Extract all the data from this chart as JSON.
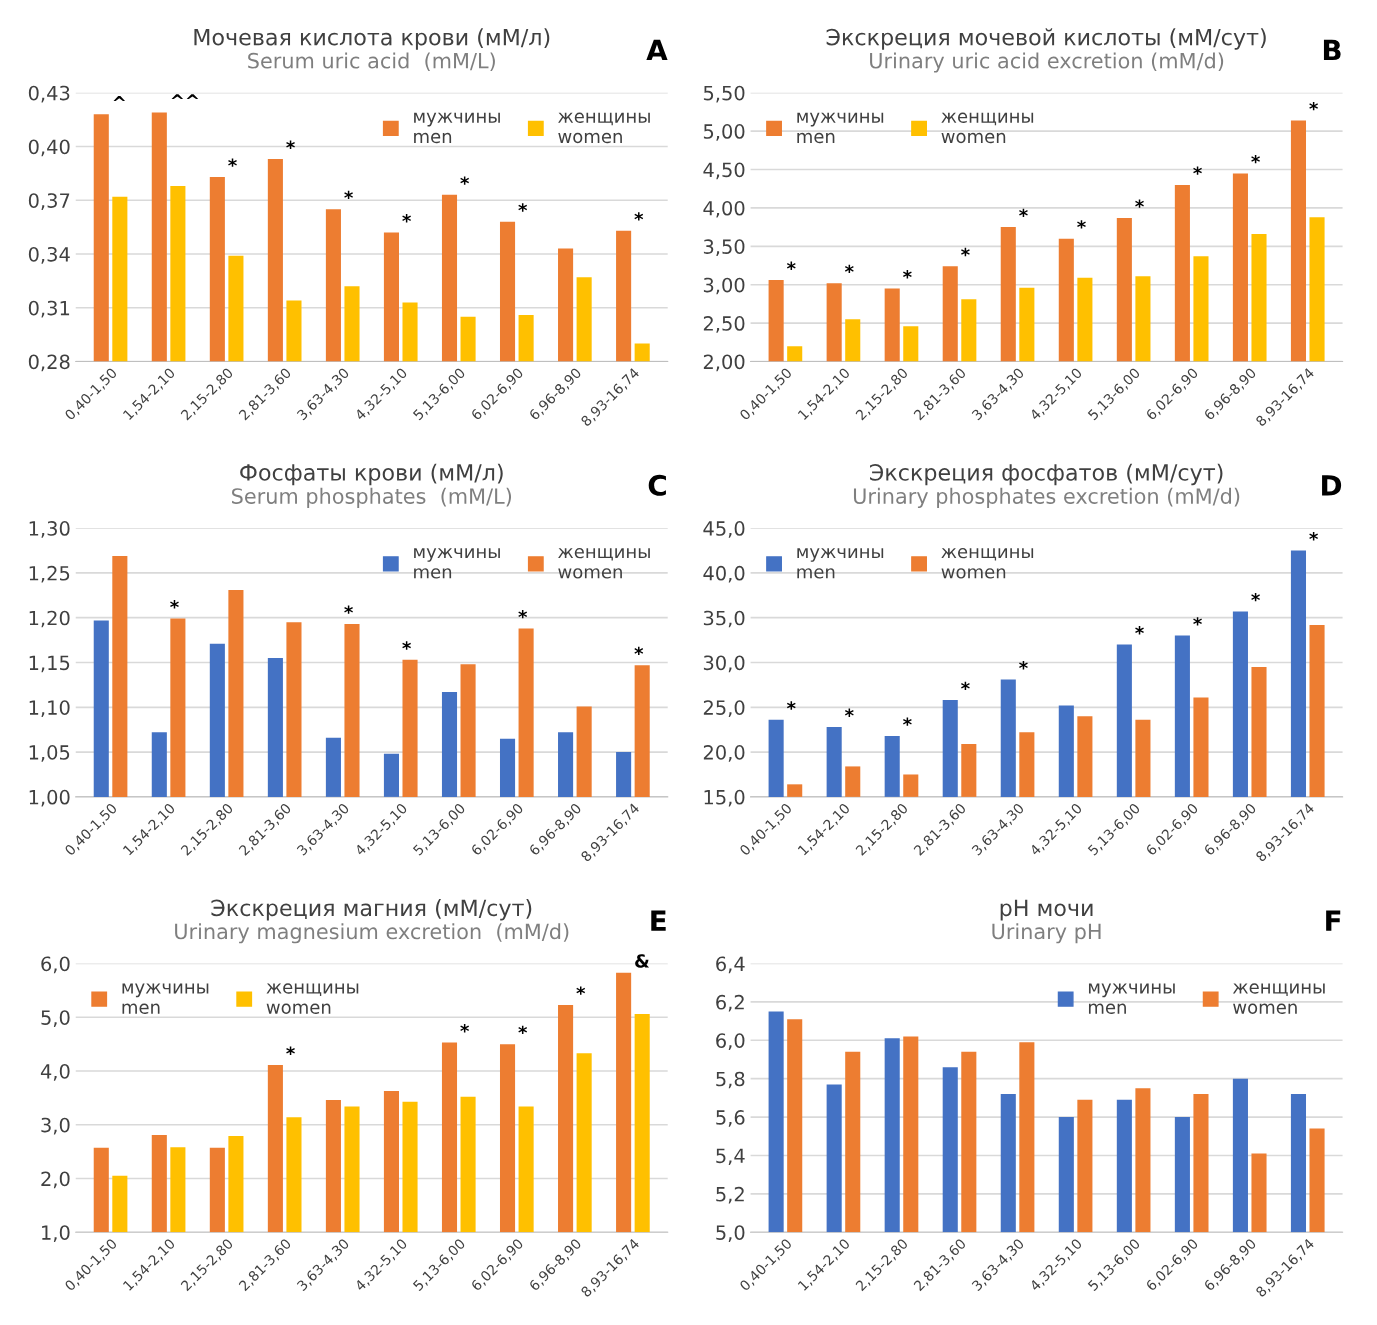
{
  "chart_data": [
    {
      "type": "bar",
      "title": "Мочевая кислота крови (мМ/л)",
      "subtitle": "Serum uric acid  (mM/L)",
      "categories": [
        "0,40-1,50",
        "1,54-2,10",
        "2,15-2,80",
        "2,81-3,60",
        "3,63-4,30",
        "4,32-5,10",
        "5,13-6,00",
        "6,02-6,90",
        "6,96-8,90",
        "8,93-16,74"
      ],
      "series": [
        {
          "name": "мужчины\nmen",
          "color": "#ed7d31",
          "values": [
            0.418,
            0.419,
            0.383,
            0.393,
            0.365,
            0.352,
            0.373,
            0.358,
            0.343,
            0.353
          ]
        },
        {
          "name": "женщины\nwomen",
          "color": "#ffc000",
          "values": [
            0.372,
            0.378,
            0.339,
            0.314,
            0.322,
            0.313,
            0.305,
            0.306,
            0.327,
            0.29
          ]
        }
      ],
      "ylim": [
        0.28,
        0.43
      ],
      "yticks": [
        {
          "value": 0.28,
          "label": "0,28"
        },
        {
          "value": 0.31,
          "label": "0,31"
        },
        {
          "value": 0.34,
          "label": "0,34"
        },
        {
          "value": 0.37,
          "label": "0,37"
        },
        {
          "value": 0.4,
          "label": "0,40"
        },
        {
          "value": 0.43,
          "label": "0,43"
        }
      ],
      "grid": "y",
      "legend": "top right",
      "annotations": [
        "A",
        {
          "text": "^",
          "x": "0,40-1,50",
          "y": 0.418
        },
        {
          "text": "^^",
          "x": "1,54-2,10",
          "y": 0.419
        },
        {
          "text": "*",
          "x": "2,15-2,80",
          "y": 0.383
        },
        {
          "text": "*",
          "x": "2,81-3,60",
          "y": 0.393
        },
        {
          "text": "*",
          "x": "3,63-4,30",
          "y": 0.365
        },
        {
          "text": "*",
          "x": "4,32-5,10",
          "y": 0.352
        },
        {
          "text": "*",
          "x": "5,13-6,00",
          "y": 0.373
        },
        {
          "text": "*",
          "x": "6,02-6,90",
          "y": 0.358
        },
        {
          "text": "*",
          "x": "8,93-16,74",
          "y": 0.353
        }
      ]
    },
    {
      "type": "bar",
      "title": "Экскреция мочевой кислоты (мМ/сут)",
      "subtitle": "Urinary uric acid excretion (mM/d)",
      "categories": [
        "0,40-1,50",
        "1,54-2,10",
        "2,15-2,80",
        "2,81-3,60",
        "3,63-4,30",
        "4,32-5,10",
        "5,13-6,00",
        "6,02-6,90",
        "6,96-8,90",
        "8,93-16,74"
      ],
      "series": [
        {
          "name": "мужчины\nmen",
          "color": "#ed7d31",
          "values": [
            3.06,
            3.02,
            2.95,
            3.24,
            3.75,
            3.6,
            3.87,
            4.3,
            4.45,
            5.14
          ]
        },
        {
          "name": "женщины\nwomen",
          "color": "#ffc000",
          "values": [
            2.2,
            2.55,
            2.46,
            2.81,
            2.96,
            3.09,
            3.11,
            3.37,
            3.66,
            3.88
          ]
        }
      ],
      "ylim": [
        2.0,
        5.5
      ],
      "yticks": [
        {
          "value": 2.0,
          "label": "2,00"
        },
        {
          "value": 2.5,
          "label": "2,50"
        },
        {
          "value": 3.0,
          "label": "3,00"
        },
        {
          "value": 3.5,
          "label": "3,50"
        },
        {
          "value": 4.0,
          "label": "4,00"
        },
        {
          "value": 4.5,
          "label": "4,50"
        },
        {
          "value": 5.0,
          "label": "5,00"
        },
        {
          "value": 5.5,
          "label": "5,50"
        }
      ],
      "grid": "y",
      "legend": "top left",
      "annotations": [
        "B",
        {
          "text": "*",
          "x": "0,40-1,50",
          "y": 3.06
        },
        {
          "text": "*",
          "x": "1,54-2,10",
          "y": 3.02
        },
        {
          "text": "*",
          "x": "2,15-2,80",
          "y": 2.95
        },
        {
          "text": "*",
          "x": "2,81-3,60",
          "y": 3.24
        },
        {
          "text": "*",
          "x": "3,63-4,30",
          "y": 3.75
        },
        {
          "text": "*",
          "x": "4,32-5,10",
          "y": 3.6
        },
        {
          "text": "*",
          "x": "5,13-6,00",
          "y": 3.87
        },
        {
          "text": "*",
          "x": "6,02-6,90",
          "y": 4.3
        },
        {
          "text": "*",
          "x": "6,96-8,90",
          "y": 4.45
        },
        {
          "text": "*",
          "x": "8,93-16,74",
          "y": 5.14
        }
      ]
    },
    {
      "type": "bar",
      "title": "Фосфаты крови (мМ/л)",
      "subtitle": "Serum phosphates  (mM/L)",
      "categories": [
        "0,40-1,50",
        "1,54-2,10",
        "2,15-2,80",
        "2,81-3,60",
        "3,63-4,30",
        "4,32-5,10",
        "5,13-6,00",
        "6,02-6,90",
        "6,96-8,90",
        "8,93-16,74"
      ],
      "series": [
        {
          "name": "мужчины\nmen",
          "color": "#4472c4",
          "values": [
            1.197,
            1.072,
            1.171,
            1.155,
            1.066,
            1.048,
            1.117,
            1.065,
            1.072,
            1.05
          ]
        },
        {
          "name": "женщины\nwomen",
          "color": "#ed7d31",
          "values": [
            1.269,
            1.199,
            1.231,
            1.195,
            1.193,
            1.153,
            1.148,
            1.188,
            1.101,
            1.147
          ]
        }
      ],
      "ylim": [
        1.0,
        1.3
      ],
      "yticks": [
        {
          "value": 1.0,
          "label": "1,00"
        },
        {
          "value": 1.05,
          "label": "1,05"
        },
        {
          "value": 1.1,
          "label": "1,10"
        },
        {
          "value": 1.15,
          "label": "1,15"
        },
        {
          "value": 1.2,
          "label": "1,20"
        },
        {
          "value": 1.25,
          "label": "1,25"
        },
        {
          "value": 1.3,
          "label": "1,30"
        }
      ],
      "grid": "y",
      "legend": "top right",
      "annotations": [
        "C",
        {
          "text": "*",
          "x": "1,54-2,10",
          "y": 1.199
        },
        {
          "text": "*",
          "x": "3,63-4,30",
          "y": 1.193
        },
        {
          "text": "*",
          "x": "4,32-5,10",
          "y": 1.153
        },
        {
          "text": "*",
          "x": "6,02-6,90",
          "y": 1.188
        },
        {
          "text": "*",
          "x": "8,93-16,74",
          "y": 1.147
        }
      ]
    },
    {
      "type": "bar",
      "title": "Экскреция фосфатов (мМ/сут)",
      "subtitle": "Urinary phosphates excretion (mM/d)",
      "categories": [
        "0,40-1,50",
        "1,54-2,10",
        "2,15-2,80",
        "2,81-3,60",
        "3,63-4,30",
        "4,32-5,10",
        "5,13-6,00",
        "6,02-6,90",
        "6,96-8,90",
        "8,93-16,74"
      ],
      "series": [
        {
          "name": "мужчины\nmen",
          "color": "#4472c4",
          "values": [
            23.6,
            22.8,
            21.8,
            25.8,
            28.1,
            25.2,
            32.0,
            33.0,
            35.7,
            42.5
          ]
        },
        {
          "name": "женщины\nwomen",
          "color": "#ed7d31",
          "values": [
            16.4,
            18.4,
            17.5,
            20.9,
            22.2,
            24.0,
            23.6,
            26.1,
            29.5,
            34.2
          ]
        }
      ],
      "ylim": [
        15,
        45
      ],
      "yticks": [
        {
          "value": 15,
          "label": "15,0"
        },
        {
          "value": 20,
          "label": "20,0"
        },
        {
          "value": 25,
          "label": "25,0"
        },
        {
          "value": 30,
          "label": "30,0"
        },
        {
          "value": 35,
          "label": "35,0"
        },
        {
          "value": 40,
          "label": "40,0"
        },
        {
          "value": 45,
          "label": "45,0"
        }
      ],
      "grid": "y",
      "legend": "top left",
      "annotations": [
        "D",
        {
          "text": "*",
          "x": "0,40-1,50",
          "y": 23.6
        },
        {
          "text": "*",
          "x": "1,54-2,10",
          "y": 22.8
        },
        {
          "text": "*",
          "x": "2,15-2,80",
          "y": 21.8
        },
        {
          "text": "*",
          "x": "2,81-3,60",
          "y": 25.8
        },
        {
          "text": "*",
          "x": "3,63-4,30",
          "y": 28.1
        },
        {
          "text": "*",
          "x": "5,13-6,00",
          "y": 32.0
        },
        {
          "text": "*",
          "x": "6,02-6,90",
          "y": 33.0
        },
        {
          "text": "*",
          "x": "6,96-8,90",
          "y": 35.7
        },
        {
          "text": "*",
          "x": "8,93-16,74",
          "y": 42.5
        }
      ]
    },
    {
      "type": "bar",
      "title": "Экскреция магния (мМ/сут)",
      "subtitle": "Urinary magnesium excretion  (mM/d)",
      "categories": [
        "0,40-1,50",
        "1,54-2,10",
        "2,15-2,80",
        "2,81-3,60",
        "3,63-4,30",
        "4,32-5,10",
        "5,13-6,00",
        "6,02-6,90",
        "6,96-8,90",
        "8,93-16,74"
      ],
      "series": [
        {
          "name": "мужчины\nmen",
          "color": "#ed7d31",
          "values": [
            2.57,
            2.81,
            2.57,
            4.11,
            3.46,
            3.63,
            4.53,
            4.5,
            5.23,
            5.83
          ]
        },
        {
          "name": "женщины\nwomen",
          "color": "#ffc000",
          "values": [
            2.05,
            2.58,
            2.79,
            3.14,
            3.34,
            3.43,
            3.52,
            3.34,
            4.33,
            5.06
          ]
        }
      ],
      "ylim": [
        1.0,
        6.0
      ],
      "yticks": [
        {
          "value": 1.0,
          "label": "1,0"
        },
        {
          "value": 2.0,
          "label": "2,0"
        },
        {
          "value": 3.0,
          "label": "3,0"
        },
        {
          "value": 4.0,
          "label": "4,0"
        },
        {
          "value": 5.0,
          "label": "5,0"
        },
        {
          "value": 6.0,
          "label": "6,0"
        }
      ],
      "grid": "y",
      "legend": "top left",
      "annotations": [
        "E",
        {
          "text": "*",
          "x": "2,81-3,60",
          "y": 4.11
        },
        {
          "text": "*",
          "x": "5,13-6,00",
          "y": 4.53
        },
        {
          "text": "*",
          "x": "6,02-6,90",
          "y": 4.5
        },
        {
          "text": "*",
          "x": "6,96-8,90",
          "y": 5.23
        },
        {
          "text": "&",
          "x": "8,93-16,74",
          "y": 5.83
        }
      ]
    },
    {
      "type": "bar",
      "title": "pH мочи",
      "subtitle": "Urinary pH",
      "categories": [
        "0,40-1,50",
        "1,54-2,10",
        "2,15-2,80",
        "2,81-3,60",
        "3,63-4,30",
        "4,32-5,10",
        "5,13-6,00",
        "6,02-6,90",
        "6,96-8,90",
        "8,93-16,74"
      ],
      "series": [
        {
          "name": "мужчины\nmen",
          "color": "#4472c4",
          "values": [
            6.15,
            5.77,
            6.01,
            5.86,
            5.72,
            5.6,
            5.69,
            5.6,
            5.8,
            5.72
          ]
        },
        {
          "name": "женщины\nwomen",
          "color": "#ed7d31",
          "values": [
            6.11,
            5.94,
            6.02,
            5.94,
            5.99,
            5.69,
            5.75,
            5.72,
            5.41,
            5.54
          ]
        }
      ],
      "ylim": [
        5.0,
        6.4
      ],
      "yticks": [
        {
          "value": 5.0,
          "label": "5,0"
        },
        {
          "value": 5.2,
          "label": "5,2"
        },
        {
          "value": 5.4,
          "label": "5,4"
        },
        {
          "value": 5.6,
          "label": "5,6"
        },
        {
          "value": 5.8,
          "label": "5,8"
        },
        {
          "value": 6.0,
          "label": "6,0"
        },
        {
          "value": 6.2,
          "label": "6,2"
        },
        {
          "value": 6.4,
          "label": "6,4"
        }
      ],
      "grid": "y",
      "legend": "top right",
      "annotations": [
        "F"
      ]
    }
  ]
}
